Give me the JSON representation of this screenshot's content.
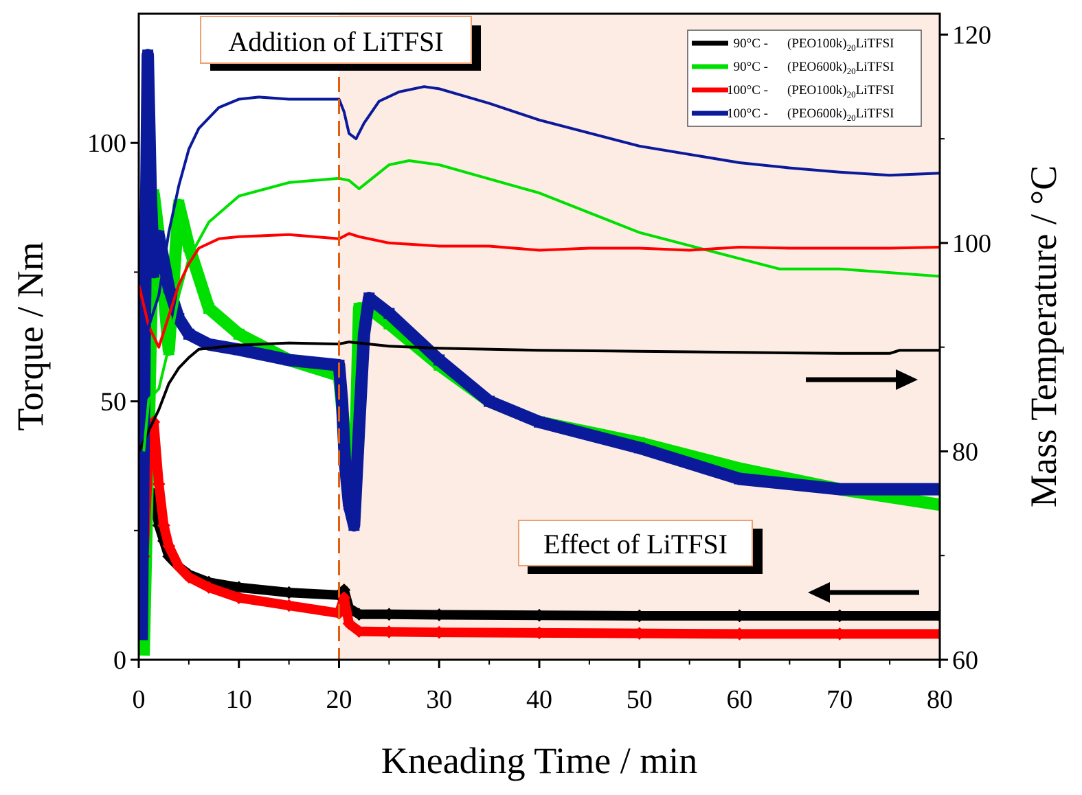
{
  "chart_data": {
    "type": "line",
    "xlabel": "Kneading Time / min",
    "ylabel_left": "Torque / Nm",
    "ylabel_right": "Mass Temperature / °C",
    "xlim": [
      0,
      80
    ],
    "ylim_left": [
      0,
      125
    ],
    "ylim_right": [
      60,
      122
    ],
    "xticks": [
      "0",
      "10",
      "20",
      "30",
      "40",
      "50",
      "60",
      "70",
      "80"
    ],
    "yticks_left": [
      "0",
      "50",
      "100"
    ],
    "yticks_right": [
      "60",
      "80",
      "100",
      "120"
    ],
    "colors": {
      "black": "#000000",
      "green": "#00e000",
      "red": "#ff0000",
      "blue": "#0a1a9a",
      "dash": "#e06010",
      "shade": "#fdece4"
    },
    "legend": [
      {
        "temp": "90°C -",
        "name": "(PEO100k)",
        "sub": "20",
        "suffix": "LiTFSI",
        "color": "#000000"
      },
      {
        "temp": "90°C -",
        "name": "(PEO600k)",
        "sub": "20",
        "suffix": "LiTFSI",
        "color": "#00e000"
      },
      {
        "temp": "100°C -",
        "name": "(PEO100k)",
        "sub": "20",
        "suffix": "LiTFSI",
        "color": "#ff0000"
      },
      {
        "temp": "100°C -",
        "name": "(PEO600k)",
        "sub": "20",
        "suffix": "LiTFSI",
        "color": "#0a1a9a"
      }
    ],
    "annotations": {
      "addition": "Addition of LiTFSI",
      "effect": "Effect of LiTFSI",
      "addition_time": 20,
      "shaded_range": [
        20,
        80
      ]
    },
    "temperature_series": [
      {
        "name": "90°C - (PEO100k)20LiTFSI",
        "color": "#000000",
        "axis": "right",
        "x": [
          0,
          1,
          2,
          3,
          4,
          5,
          6,
          8,
          10,
          15,
          20,
          21,
          22,
          25,
          30,
          40,
          50,
          60,
          70,
          75,
          76,
          80
        ],
        "y": [
          80,
          82,
          84,
          86.5,
          88,
          89,
          89.8,
          90,
          90.2,
          90.4,
          90.3,
          90.5,
          90.4,
          90.1,
          89.9,
          89.7,
          89.6,
          89.5,
          89.4,
          89.4,
          89.7,
          89.7
        ]
      },
      {
        "name": "90°C - (PEO600k)20LiTFSI",
        "color": "#00e000",
        "axis": "right",
        "x": [
          0.5,
          1,
          2,
          3,
          4,
          5,
          7,
          10,
          15,
          20,
          21,
          22,
          25,
          27,
          30,
          40,
          50,
          60,
          64,
          70,
          80
        ],
        "y": [
          80,
          85,
          86,
          90,
          95,
          98.5,
          102,
          104.5,
          105.8,
          106.2,
          106,
          105.2,
          107.5,
          107.9,
          107.5,
          104.8,
          101,
          98.5,
          97.5,
          97.5,
          96.8
        ]
      },
      {
        "name": "100°C - (PEO100k)20LiTFSI",
        "color": "#ff0000",
        "axis": "right",
        "x": [
          0,
          1,
          2,
          3,
          4,
          5,
          6,
          8,
          10,
          15,
          20,
          21,
          22,
          25,
          30,
          35,
          40,
          45,
          50,
          55,
          60,
          65,
          70,
          75,
          80
        ],
        "y": [
          96,
          92,
          90,
          93,
          96,
          98,
          99.5,
          100.4,
          100.6,
          100.8,
          100.4,
          100.9,
          100.6,
          100,
          99.7,
          99.7,
          99.3,
          99.5,
          99.5,
          99.3,
          99.6,
          99.5,
          99.5,
          99.5,
          99.6
        ]
      },
      {
        "name": "100°C - (PEO600k)20LiTFSI",
        "color": "#0a1a9a",
        "axis": "right",
        "x": [
          0.5,
          1,
          2,
          3,
          4,
          5,
          6,
          8,
          10,
          12,
          15,
          20,
          20.5,
          21,
          21.7,
          22.5,
          24,
          26,
          28.5,
          30,
          35,
          40,
          50,
          60,
          65,
          70,
          75,
          80
        ],
        "y": [
          90,
          92,
          95,
          101,
          105.5,
          109,
          111,
          113,
          113.8,
          114,
          113.8,
          113.8,
          112.6,
          110.5,
          110,
          111.5,
          113.6,
          114.5,
          115,
          114.8,
          113.4,
          111.8,
          109.3,
          107.7,
          107.2,
          106.8,
          106.5,
          106.7
        ]
      }
    ],
    "torque_series": [
      {
        "name": "90°C - (PEO100k)20LiTFSI",
        "color": "#000000",
        "axis": "left",
        "x": [
          0,
          0.5,
          1,
          1.5,
          2,
          2.5,
          3,
          4,
          5,
          7,
          10,
          15,
          20,
          20.5,
          21,
          22,
          25,
          30,
          40,
          50,
          60,
          70,
          80
        ],
        "y": [
          12,
          22,
          30,
          32,
          26,
          23,
          20,
          18,
          16.5,
          15,
          14,
          13,
          12.5,
          13.5,
          10,
          8.8,
          8.8,
          8.7,
          8.6,
          8.5,
          8.5,
          8.5,
          8.5
        ]
      },
      {
        "name": "90°C - (PEO600k)20LiTFSI",
        "color": "#00e000",
        "axis": "left",
        "x": [
          0.5,
          1,
          1.5,
          2,
          3,
          4,
          5,
          7,
          10,
          15,
          20,
          20.5,
          21,
          21.5,
          22,
          23,
          25,
          30,
          35,
          40,
          50,
          60,
          70,
          80
        ],
        "y": [
          2,
          45,
          90,
          82,
          60,
          88,
          80,
          68,
          63,
          58,
          55,
          45,
          40,
          30,
          68,
          68,
          65,
          57,
          50,
          46,
          42,
          37,
          33,
          30
        ]
      },
      {
        "name": "100°C - (PEO100k)20LiTFSI",
        "color": "#ff0000",
        "axis": "left",
        "x": [
          0,
          0.5,
          1,
          1.5,
          2,
          2.5,
          3,
          4,
          5,
          7,
          10,
          15,
          20,
          20.5,
          21,
          22,
          25,
          30,
          40,
          50,
          60,
          70,
          80
        ],
        "y": [
          10,
          20,
          40,
          46,
          34,
          26,
          22,
          18,
          16,
          14,
          12,
          10.5,
          9,
          12,
          7,
          5.5,
          5.4,
          5.3,
          5.2,
          5.1,
          5,
          5,
          5
        ]
      },
      {
        "name": "100°C - (PEO600k)20LiTFSI",
        "color": "#0a1a9a",
        "axis": "left",
        "x": [
          0.3,
          0.6,
          0.9,
          1.2,
          1.5,
          2,
          3,
          4,
          5,
          7,
          10,
          15,
          20,
          20.3,
          20.6,
          21,
          21.5,
          22,
          22.5,
          23,
          25,
          30,
          35,
          40,
          50,
          60,
          70,
          80
        ],
        "y": [
          5,
          63,
          117,
          90,
          75,
          82,
          72,
          66,
          63,
          61,
          60,
          58,
          57,
          50,
          38,
          30,
          26,
          45,
          63,
          70,
          67,
          58,
          50,
          46,
          41,
          35,
          33,
          33
        ]
      }
    ]
  }
}
